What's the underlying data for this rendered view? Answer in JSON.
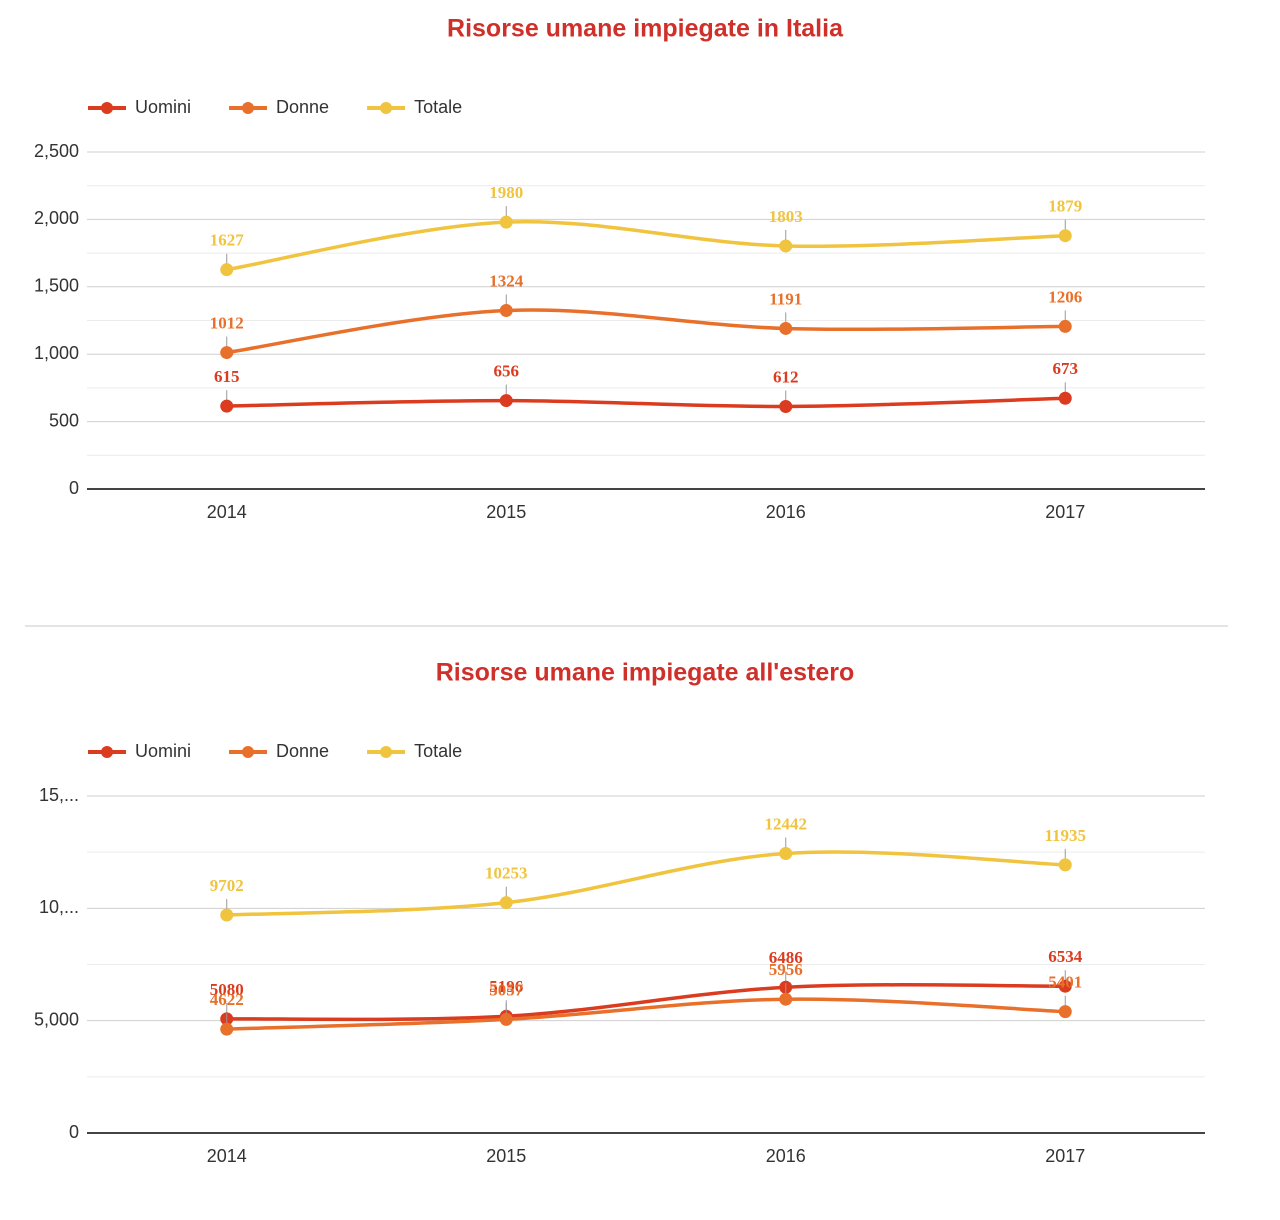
{
  "chart_data": [
    {
      "type": "line",
      "title": "Risorse umane impiegate in Italia",
      "categories": [
        "2014",
        "2015",
        "2016",
        "2017"
      ],
      "series": [
        {
          "name": "Uomini",
          "color": "#db3b1f",
          "values": [
            615,
            656,
            612,
            673
          ]
        },
        {
          "name": "Donne",
          "color": "#e8702a",
          "values": [
            1012,
            1324,
            1191,
            1206
          ]
        },
        {
          "name": "Totale",
          "color": "#f0c43f",
          "values": [
            1627,
            1980,
            1803,
            1879
          ]
        }
      ],
      "ylim": [
        0,
        2500
      ],
      "yticks": [
        0,
        500,
        {
          "value": 1000,
          "label": "1,000"
        },
        {
          "value": 1500,
          "label": "1,500"
        },
        {
          "value": 2000,
          "label": "2,000"
        },
        {
          "value": 2500,
          "label": "2,500"
        }
      ],
      "grid": true,
      "legend": "top"
    },
    {
      "type": "line",
      "title": "Risorse umane impiegate all'estero",
      "categories": [
        "2014",
        "2015",
        "2016",
        "2017"
      ],
      "series": [
        {
          "name": "Uomini",
          "color": "#db3b1f",
          "values": [
            5080,
            5196,
            6486,
            6534
          ]
        },
        {
          "name": "Donne",
          "color": "#e8702a",
          "values": [
            4622,
            5057,
            5956,
            5401
          ]
        },
        {
          "name": "Totale",
          "color": "#f0c43f",
          "values": [
            9702,
            10253,
            12442,
            11935
          ]
        }
      ],
      "ylim": [
        0,
        15000
      ],
      "yticks": [
        0,
        {
          "value": 5000,
          "label": "5,000"
        },
        {
          "value": 10000,
          "label": "10,..."
        },
        {
          "value": 15000,
          "label": "15,..."
        }
      ],
      "grid": true,
      "legend": "top"
    }
  ]
}
